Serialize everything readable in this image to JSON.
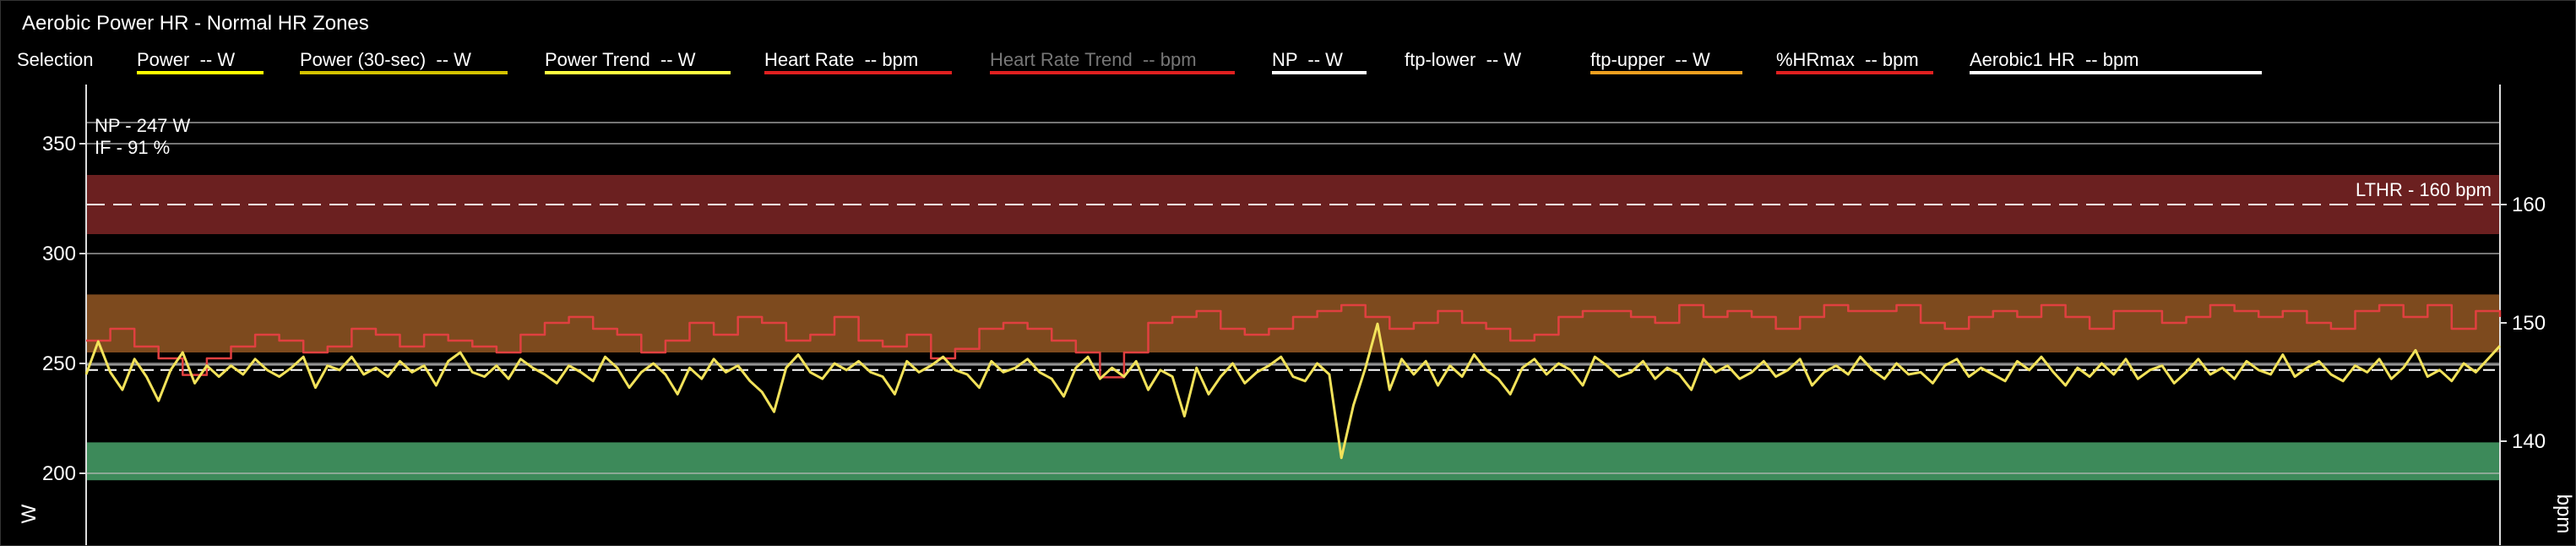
{
  "window": {
    "title": "Aerobic Power HR - Normal HR Zones"
  },
  "legend": {
    "selection_label": "Selection",
    "items": [
      {
        "label": "Power  -- W",
        "color": "#ffff00",
        "dimmed": false
      },
      {
        "label": "Power (30-sec)  -- W",
        "color": "#d4c200",
        "dimmed": false
      },
      {
        "label": "Power Trend  -- W",
        "color": "#ffff40",
        "dimmed": false
      },
      {
        "label": "Heart Rate  -- bpm",
        "color": "#e02020",
        "dimmed": false
      },
      {
        "label": "Heart Rate Trend  -- bpm",
        "color": "#e02020",
        "dimmed": true
      },
      {
        "label": "NP  -- W",
        "color": "#ffffff",
        "dimmed": false
      },
      {
        "label": "ftp-lower  -- W",
        "color": "#000000",
        "dimmed": false
      },
      {
        "label": "ftp-upper  -- W",
        "color": "#f0a020",
        "dimmed": false
      },
      {
        "label": "%HRmax  -- bpm",
        "color": "#e02020",
        "dimmed": false
      },
      {
        "label": "Aerobic1 HR  -- bpm",
        "color": "#ffffff",
        "dimmed": false
      }
    ]
  },
  "chart_data": {
    "type": "line",
    "ylabel": "W",
    "y2label": "bpm",
    "y_ticks": [
      200,
      250,
      300,
      350
    ],
    "y2_ticks": [
      140,
      150,
      160
    ],
    "annotations": {
      "np": "NP - 247 W",
      "if": "IF - 91 %",
      "lthr": "LTHR - 160 bpm"
    },
    "reference_lines": {
      "np_w": 247,
      "lthr_bpm": 160
    },
    "zones_bpm": [
      {
        "name": "red",
        "from": 157.5,
        "to": 162.5,
        "color": "#6b2020"
      },
      {
        "name": "orange",
        "from": 147.5,
        "to": 152.4,
        "color": "#7d4a1e"
      },
      {
        "name": "green",
        "from": 136.7,
        "to": 139.9,
        "color": "#3d8a5a"
      }
    ],
    "series": [
      {
        "name": "Heart Rate",
        "axis": "bpm",
        "color": "#e04040",
        "x": [
          0,
          1,
          2,
          3,
          4,
          5,
          6,
          7,
          8,
          9,
          10,
          11,
          12,
          13,
          14,
          15,
          16,
          17,
          18,
          19,
          20,
          21,
          22,
          23,
          24,
          25,
          26,
          27,
          28,
          29,
          30,
          31,
          32,
          33,
          34,
          35,
          36,
          37,
          38,
          39,
          40,
          41,
          42,
          43,
          44,
          45,
          46,
          47,
          48,
          49,
          50,
          51,
          52,
          53,
          54,
          55,
          56,
          57,
          58,
          59,
          60,
          61,
          62,
          63,
          64,
          65,
          66,
          67,
          68,
          69,
          70,
          71,
          72,
          73,
          74,
          75,
          76,
          77,
          78,
          79,
          80,
          81,
          82,
          83,
          84,
          85,
          86,
          87,
          88,
          89,
          90,
          91,
          92,
          93,
          94,
          95,
          96,
          97,
          98,
          99,
          100
        ],
        "values": [
          148.5,
          149.5,
          148,
          147,
          145.6,
          147,
          148,
          149,
          148.5,
          147.5,
          148,
          149.5,
          149,
          148,
          149,
          148.5,
          148,
          147.5,
          149,
          150,
          150.5,
          149.5,
          149,
          147.5,
          148.5,
          150,
          149,
          150.5,
          150,
          148.5,
          149,
          150.5,
          148.5,
          148,
          149,
          147,
          147.8,
          149.5,
          150,
          149.5,
          148.5,
          147.5,
          145.4,
          147.5,
          150,
          150.5,
          151,
          149.5,
          149,
          149.5,
          150.5,
          151,
          151.5,
          150.5,
          149.5,
          150,
          151,
          150,
          149.5,
          148.5,
          149,
          150.5,
          151,
          151,
          150.5,
          150,
          151.5,
          150.5,
          151,
          150.5,
          149.5,
          150.5,
          151.5,
          151,
          151,
          151.5,
          150,
          149.5,
          150.5,
          151,
          150.5,
          151.5,
          150.5,
          149.5,
          151,
          151,
          150,
          150.5,
          151.5,
          151,
          150.5,
          151,
          150,
          149.5,
          151,
          151.5,
          150.5,
          151.5,
          149.5,
          151,
          150.5
        ]
      },
      {
        "name": "Power",
        "axis": "W",
        "color": "#f2e25a",
        "x": [
          0,
          0.5,
          1,
          1.5,
          2,
          2.5,
          3,
          3.5,
          4,
          4.5,
          5,
          5.5,
          6,
          6.5,
          7,
          7.5,
          8,
          8.5,
          9,
          9.5,
          10,
          10.5,
          11,
          11.5,
          12,
          12.5,
          13,
          13.5,
          14,
          14.5,
          15,
          15.5,
          16,
          16.5,
          17,
          17.5,
          18,
          18.5,
          19,
          19.5,
          20,
          20.5,
          21,
          21.5,
          22,
          22.5,
          23,
          23.5,
          24,
          24.5,
          25,
          25.5,
          26,
          26.5,
          27,
          27.5,
          28,
          28.5,
          29,
          29.5,
          30,
          30.5,
          31,
          31.5,
          32,
          32.5,
          33,
          33.5,
          34,
          34.5,
          35,
          35.5,
          36,
          36.5,
          37,
          37.5,
          38,
          38.5,
          39,
          39.5,
          40,
          40.5,
          41,
          41.5,
          42,
          42.5,
          43,
          43.5,
          44,
          44.5,
          45,
          45.5,
          46,
          46.5,
          47,
          47.5,
          48,
          48.5,
          49,
          49.5,
          50,
          50.5,
          51,
          51.5,
          52,
          52.5,
          53,
          53.5,
          54,
          54.5,
          55,
          55.5,
          56,
          56.5,
          57,
          57.5,
          58,
          58.5,
          59,
          59.5,
          60,
          60.5,
          61,
          61.5,
          62,
          62.5,
          63,
          63.5,
          64,
          64.5,
          65,
          65.5,
          66,
          66.5,
          67,
          67.5,
          68,
          68.5,
          69,
          69.5,
          70,
          70.5,
          71,
          71.5,
          72,
          72.5,
          73,
          73.5,
          74,
          74.5,
          75,
          75.5,
          76,
          76.5,
          77,
          77.5,
          78,
          78.5,
          79,
          79.5,
          80,
          80.5,
          81,
          81.5,
          82,
          82.5,
          83,
          83.5,
          84,
          84.5,
          85,
          85.5,
          86,
          86.5,
          87,
          87.5,
          88,
          88.5,
          89,
          89.5,
          90,
          90.5,
          91,
          91.5,
          92,
          92.5,
          93,
          93.5,
          94,
          94.5,
          95,
          95.5,
          96,
          96.5,
          97,
          97.5,
          98,
          98.5,
          99,
          99.5,
          100
        ],
        "values": [
          245,
          260,
          246,
          238,
          252,
          244,
          233,
          247,
          255,
          241,
          249,
          244,
          249,
          245,
          252,
          247,
          244,
          248,
          253,
          239,
          249,
          247,
          253,
          245,
          248,
          244,
          251,
          246,
          249,
          240,
          251,
          255,
          246,
          244,
          249,
          243,
          252,
          248,
          245,
          241,
          249,
          246,
          242,
          253,
          248,
          239,
          246,
          250,
          245,
          236,
          248,
          243,
          252,
          246,
          249,
          242,
          237,
          228,
          248,
          254,
          246,
          243,
          250,
          247,
          251,
          246,
          244,
          236,
          251,
          246,
          249,
          253,
          247,
          245,
          239,
          251,
          246,
          248,
          252,
          246,
          243,
          235,
          248,
          253,
          243,
          248,
          244,
          251,
          238,
          247,
          244,
          226,
          248,
          236,
          244,
          250,
          241,
          246,
          249,
          253,
          244,
          242,
          250,
          245,
          207,
          231,
          248,
          268,
          238,
          252,
          245,
          251,
          240,
          249,
          244,
          254,
          247,
          243,
          236,
          248,
          252,
          245,
          250,
          247,
          240,
          253,
          249,
          244,
          246,
          251,
          243,
          248,
          245,
          238,
          252,
          246,
          249,
          243,
          246,
          251,
          244,
          247,
          252,
          240,
          246,
          249,
          245,
          253,
          247,
          243,
          250,
          245,
          246,
          241,
          249,
          252,
          244,
          248,
          245,
          242,
          251,
          247,
          253,
          246,
          240,
          248,
          244,
          250,
          245,
          252,
          243,
          247,
          249,
          241,
          246,
          252,
          245,
          248,
          243,
          251,
          247,
          245,
          254,
          244,
          248,
          251,
          245,
          242,
          249,
          246,
          252,
          243,
          248,
          256,
          244,
          247,
          242,
          250,
          246,
          252,
          258
        ]
      }
    ]
  }
}
